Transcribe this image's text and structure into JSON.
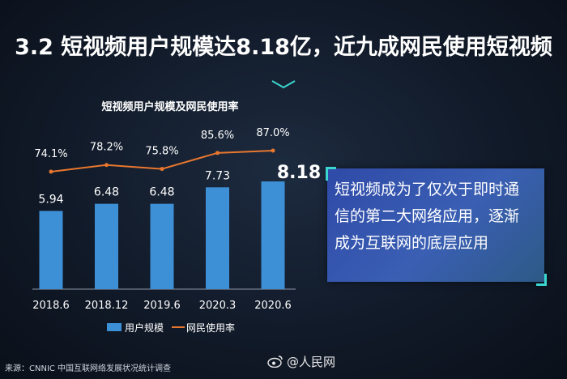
{
  "title": "3.2 短视频用户规模达8.18亿，近九成网民使用短视频",
  "chart_title": "短视频用户规模及网民使用率",
  "callout": {
    "lines": [
      "短视频成为了仅次于即时通",
      "信的第二大网络应用，逐渐",
      "成为互联网的底层应用"
    ]
  },
  "source": "来源：CNNIC 中国互联网络发展状况统计调查",
  "watermark": "@人民网",
  "colors": {
    "bar": "#3d8fd6",
    "line": "#e8772e",
    "accent": "#3bd6d0",
    "callout": "#3a5fb3"
  },
  "chart_data": {
    "type": "bar",
    "title": "短视频用户规模及网民使用率",
    "categories": [
      "2018.6",
      "2018.12",
      "2019.6",
      "2020.3",
      "2020.6"
    ],
    "series": [
      {
        "name": "用户规模",
        "type": "bar",
        "values": [
          5.94,
          6.48,
          6.48,
          7.73,
          8.18
        ],
        "labels": [
          "5.94",
          "6.48",
          "6.48",
          "7.73",
          "8.18"
        ]
      },
      {
        "name": "网民使用率",
        "type": "line",
        "values": [
          74.1,
          78.2,
          75.8,
          85.6,
          87.0
        ],
        "labels": [
          "74.1%",
          "78.2%",
          "75.8%",
          "85.6%",
          "87.0%"
        ]
      }
    ],
    "legend": "bottom"
  }
}
